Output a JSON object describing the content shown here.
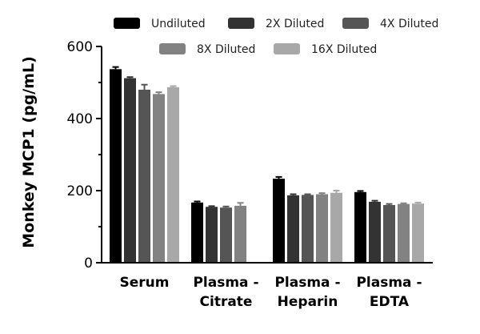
{
  "chart_data": {
    "type": "bar",
    "title": "",
    "xlabel": "",
    "ylabel": "Monkey MCP1 (pg/mL)",
    "ylim": [
      0,
      600
    ],
    "yticks": [
      0,
      200,
      400,
      600
    ],
    "grid": false,
    "legend_position": "top",
    "categories": [
      [
        "Serum"
      ],
      [
        "Plasma -",
        "Citrate"
      ],
      [
        "Plasma -",
        "Heparin"
      ],
      [
        "Plasma -",
        "EDTA"
      ]
    ],
    "series": [
      {
        "name": "Undiluted",
        "color": "#000000",
        "values": [
          537,
          167,
          233,
          196
        ],
        "errors": [
          6,
          3,
          5,
          3
        ]
      },
      {
        "name": "2X Diluted",
        "color": "#333333",
        "values": [
          512,
          155,
          187,
          169
        ],
        "errors": [
          3,
          2,
          3,
          3
        ]
      },
      {
        "name": "4X Diluted",
        "color": "#555555",
        "values": [
          480,
          153,
          188,
          160
        ],
        "errors": [
          14,
          3,
          2,
          3
        ]
      },
      {
        "name": "8X Diluted",
        "color": "#828282",
        "values": [
          468,
          158,
          190,
          163
        ],
        "errors": [
          5,
          8,
          3,
          2
        ]
      },
      {
        "name": "16X Diluted",
        "color": "#a8a8a8",
        "values": [
          487,
          0,
          194,
          164
        ],
        "errors": [
          3,
          0,
          6,
          3
        ]
      }
    ]
  }
}
